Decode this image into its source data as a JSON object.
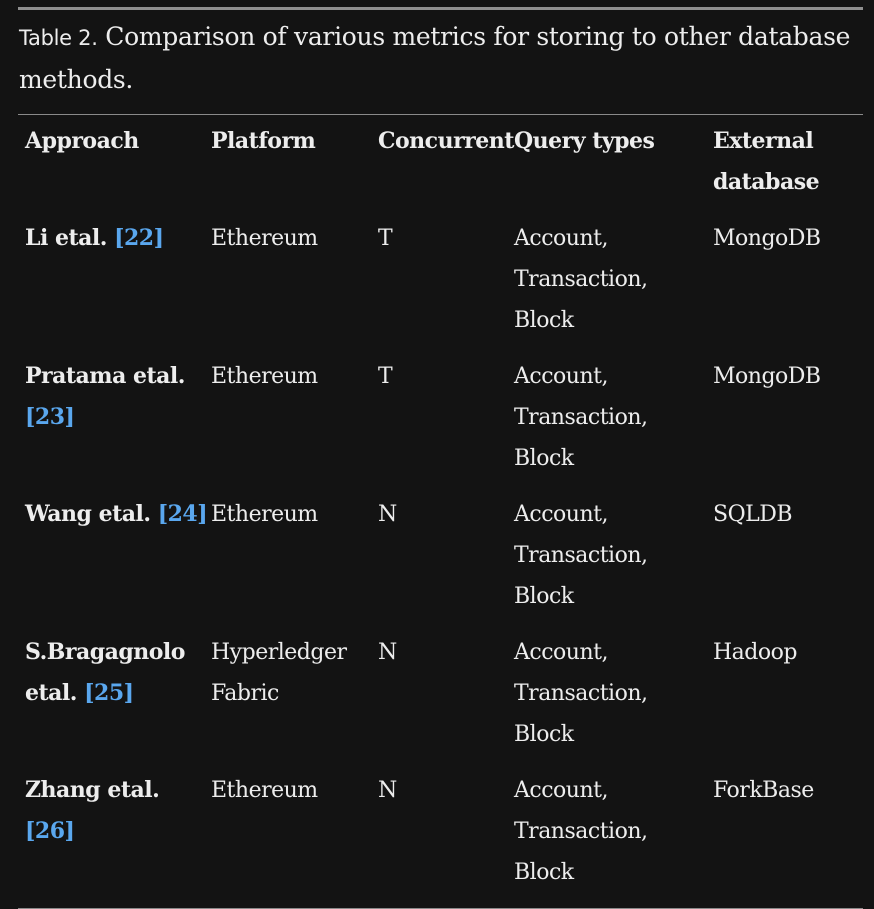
{
  "caption": {
    "label": "Table 2.",
    "text": "Comparison of various metrics for storing to other database methods."
  },
  "headers": [
    "Approach",
    "Platform",
    "Concurrent",
    "Query types",
    "External database"
  ],
  "rows": [
    {
      "approach": "Li etal.",
      "ref": "[22]",
      "platform": "Ethereum",
      "concurrent": "T",
      "query": "Account, Transaction, Block",
      "external": "MongoDB"
    },
    {
      "approach": "Pratama etal.",
      "ref": "[23]",
      "platform": "Ethereum",
      "concurrent": "T",
      "query": "Account, Transaction, Block",
      "external": "MongoDB"
    },
    {
      "approach": "Wang etal.",
      "ref": "[24]",
      "platform": "Ethereum",
      "concurrent": "N",
      "query": "Account, Transaction, Block",
      "external": "SQLDB"
    },
    {
      "approach": "S.Bragagnolo etal.",
      "ref": "[25]",
      "platform": "Hyperledger Fabric",
      "concurrent": "N",
      "query": "Account, Transaction, Block",
      "external": "Hadoop"
    },
    {
      "approach": "Zhang etal.",
      "ref": "[26]",
      "platform": "Ethereum",
      "concurrent": "N",
      "query": "Account, Transaction, Block",
      "external": "ForkBase"
    }
  ]
}
